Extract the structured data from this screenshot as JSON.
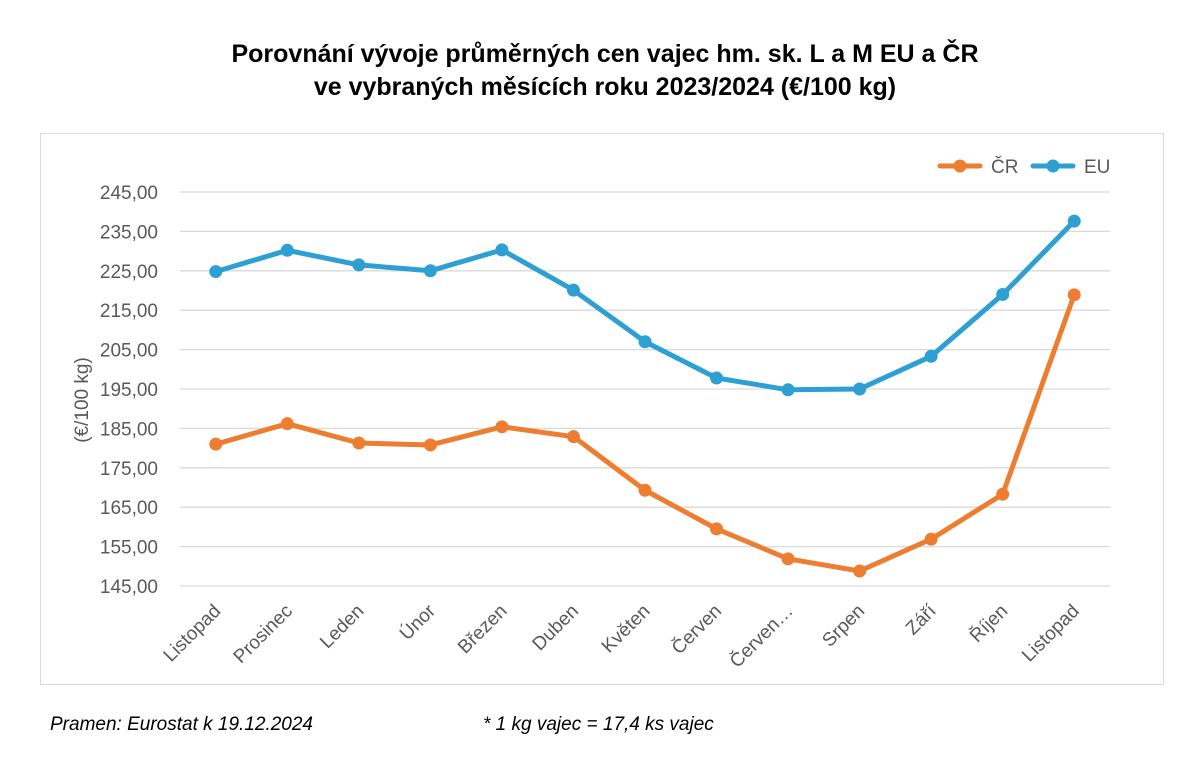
{
  "chart_data": {
    "type": "line",
    "title": [
      "Porovnání vývoje průměrných cen vajec hm. sk. L a M EU a ČR",
      "ve vybraných měsících roku 2023/2024 (€/100 kg)"
    ],
    "ylabel": "(€/100 kg)",
    "xlabel": "",
    "categories": [
      "Listopad",
      "Prosinec",
      "Leden",
      "Únor",
      "Březen",
      "Duben",
      "Květen",
      "Červen",
      "Červen…",
      "Srpen",
      "Září",
      "Říjen",
      "Listopad"
    ],
    "yticks": [
      "145,00",
      "155,00",
      "165,00",
      "175,00",
      "185,00",
      "195,00",
      "205,00",
      "215,00",
      "225,00",
      "235,00",
      "245,00"
    ],
    "ylim": [
      145,
      245
    ],
    "grid": true,
    "legend_position": "top-right",
    "series": [
      {
        "name": "ČR",
        "color": "#ED7D31",
        "values": [
          181.0,
          186.2,
          181.3,
          180.8,
          185.4,
          182.9,
          169.3,
          159.5,
          151.9,
          148.8,
          156.9,
          168.3,
          218.9
        ]
      },
      {
        "name": "EU",
        "color": "#2E9FD2",
        "values": [
          224.8,
          230.2,
          226.5,
          225.0,
          230.3,
          220.1,
          207.0,
          197.8,
          194.8,
          195.0,
          203.3,
          219.0,
          237.6
        ]
      }
    ]
  },
  "footer": {
    "source": "Pramen: Eurostat k 19.12.2024",
    "note": "* 1 kg vajec = 17,4 ks vajec"
  }
}
